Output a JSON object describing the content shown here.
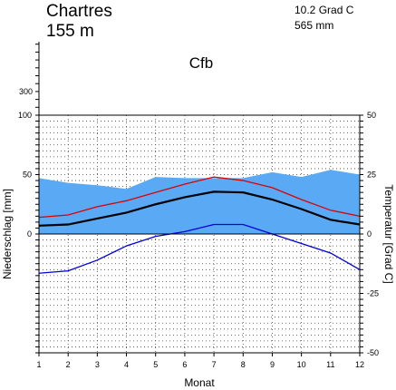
{
  "chart_data": {
    "type": "line",
    "station": "Chartres",
    "elevation": "155 m",
    "annual_temperature": "10.2 Grad C",
    "annual_precipitation": "565 mm",
    "climate_class": "Cfb",
    "xlabel": "Monat",
    "ylabel_left": "Niederschlag [mm]",
    "ylabel_right": "Temperatur [Grad C]",
    "categories": [
      "1",
      "2",
      "3",
      "4",
      "5",
      "6",
      "7",
      "8",
      "9",
      "10",
      "11",
      "12"
    ],
    "left_axis": {
      "ylim": [
        -100,
        100
      ],
      "upper_tick_label": "300",
      "ticks": [
        {
          "value": 100,
          "label": "100"
        },
        {
          "value": 50,
          "label": "50"
        },
        {
          "value": 0,
          "label": "0"
        }
      ]
    },
    "right_axis": {
      "ylim": [
        -50,
        50
      ],
      "ticks": [
        {
          "value": 50,
          "label": "50"
        },
        {
          "value": 25,
          "label": "25"
        },
        {
          "value": 0,
          "label": "0"
        },
        {
          "value": -25,
          "label": "-25"
        },
        {
          "value": -50,
          "label": "-50"
        }
      ]
    },
    "grid": true,
    "series": [
      {
        "key": "precipitation",
        "axis": "left",
        "type": "area",
        "color": "#5aa9f5",
        "values": [
          47,
          43,
          41,
          38,
          48,
          47,
          47,
          47,
          52,
          48,
          54,
          50
        ]
      },
      {
        "key": "temp_max",
        "axis": "right",
        "type": "line",
        "color": "#dd0000",
        "values": [
          7,
          8,
          11.5,
          14,
          17.5,
          21,
          24,
          22.5,
          19.5,
          14.5,
          10,
          7.5
        ]
      },
      {
        "key": "temp_mean",
        "axis": "right",
        "type": "line",
        "color": "#000000",
        "values": [
          3.5,
          4,
          6.5,
          9,
          12.5,
          15.5,
          17.8,
          17.5,
          14.5,
          10.5,
          6,
          4
        ]
      },
      {
        "key": "temp_min",
        "axis": "right",
        "type": "line",
        "color": "#0000dd",
        "values": [
          -16.5,
          -15.5,
          -11,
          -5,
          -1,
          1,
          4,
          4,
          0,
          -4,
          -8,
          -15
        ]
      }
    ]
  }
}
